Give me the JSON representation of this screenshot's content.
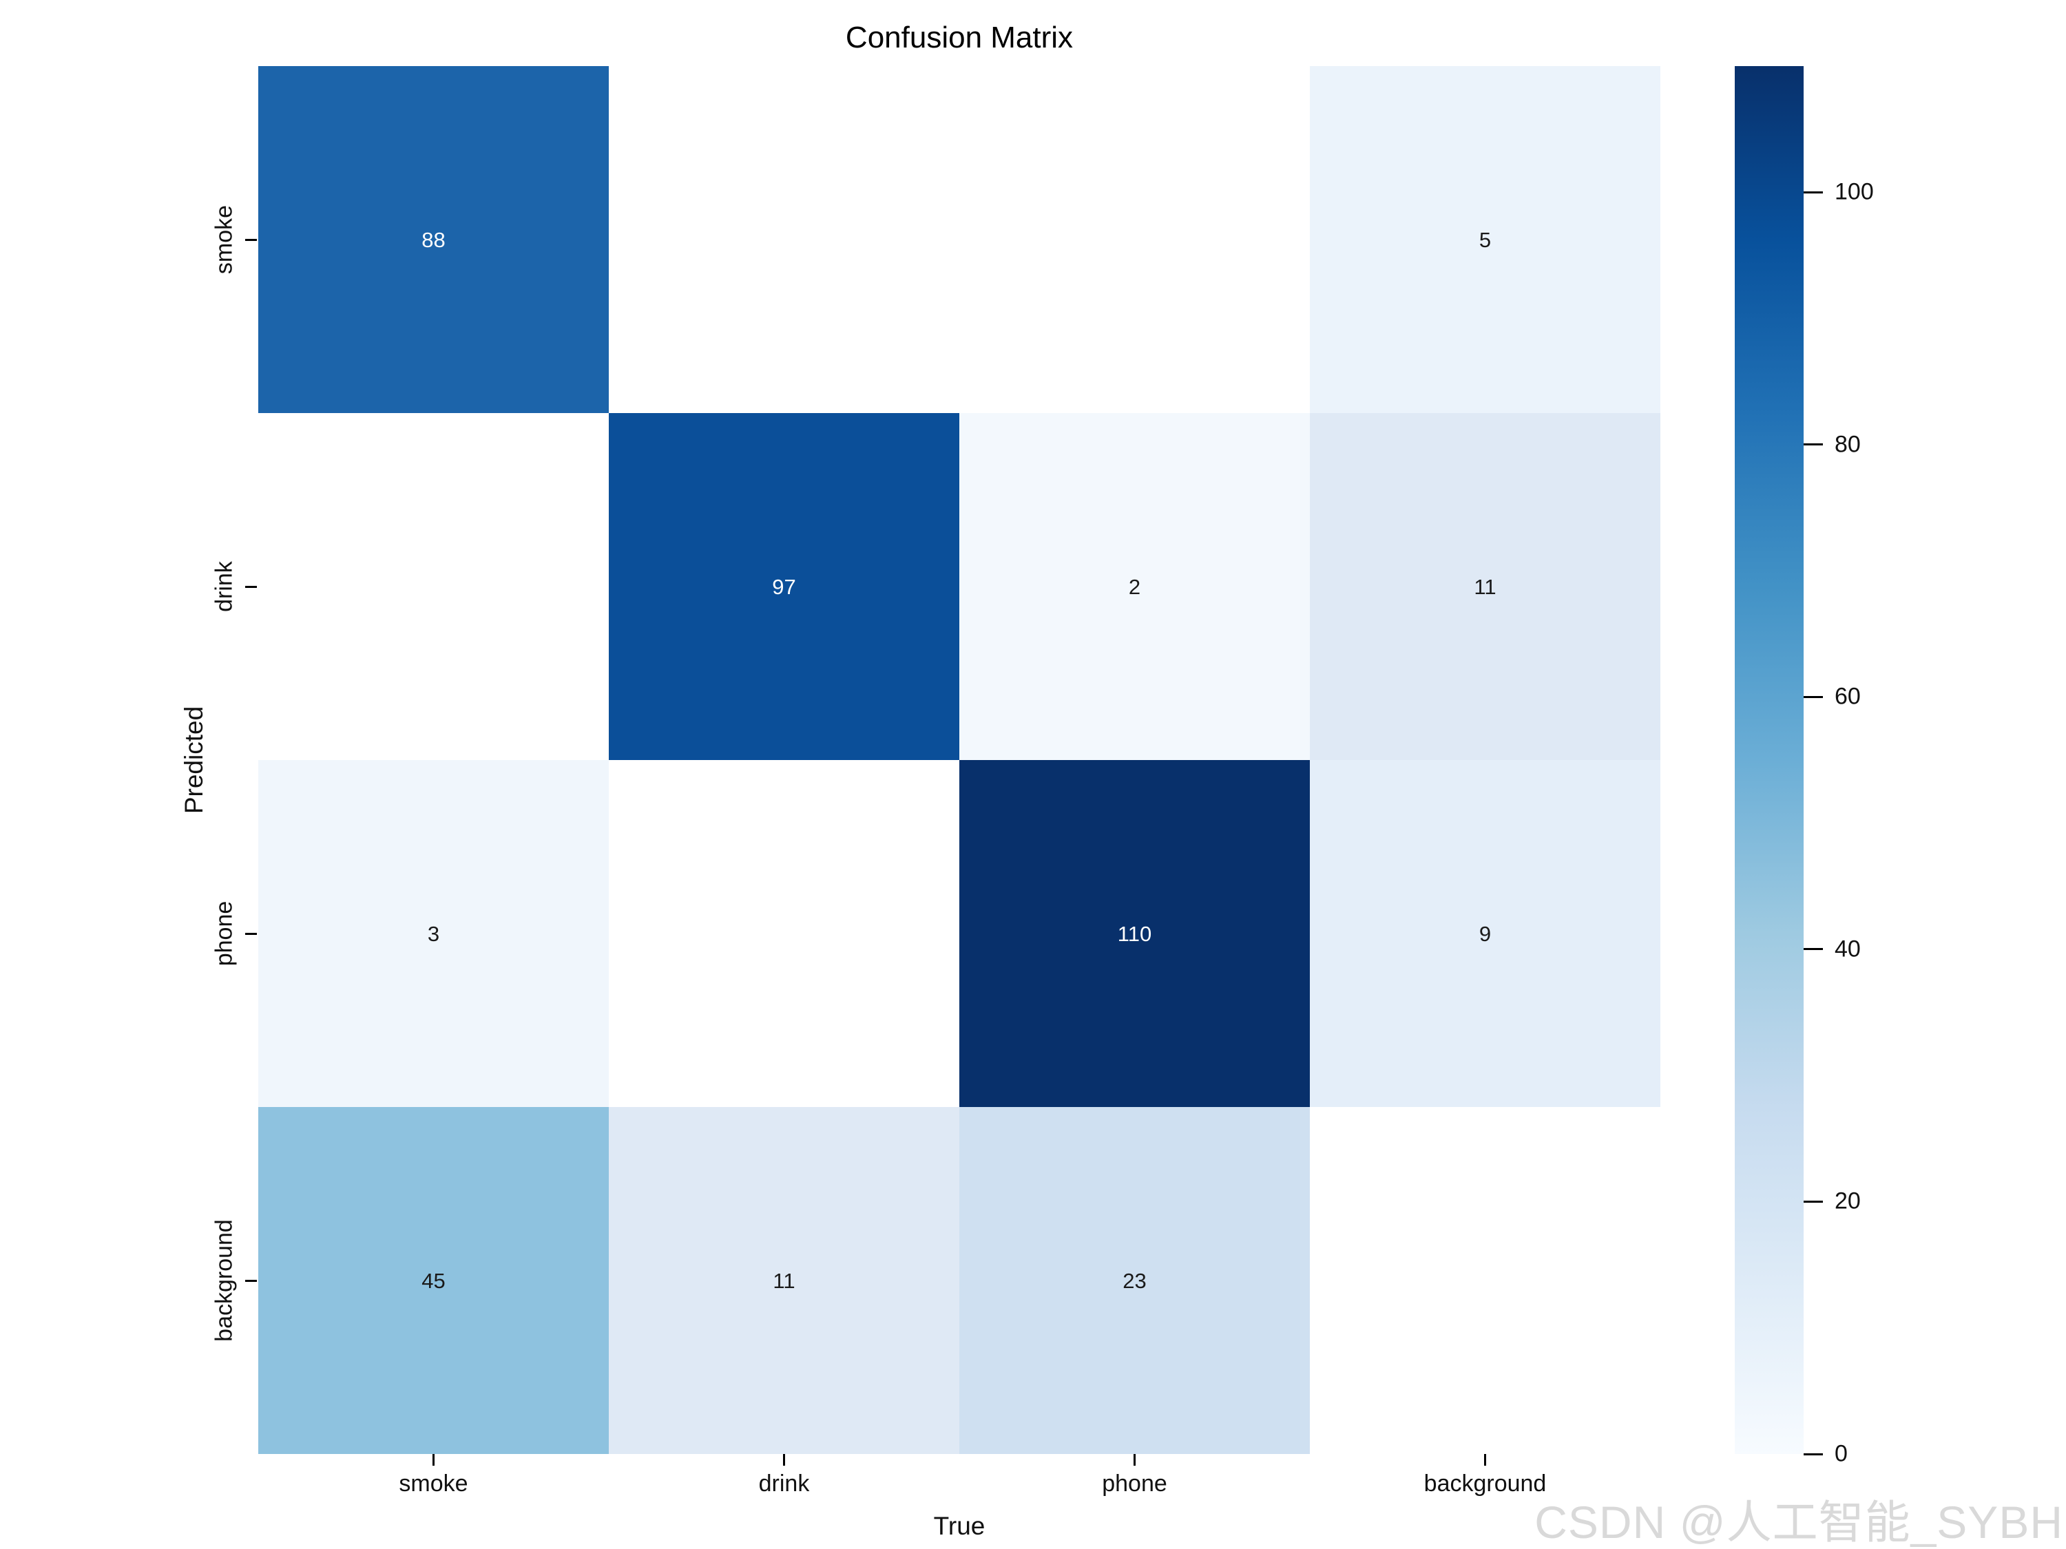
{
  "page": {
    "background": "#ffffff"
  },
  "watermark": {
    "text": "CSDN @人工智能_SYBH",
    "color": "#d9d9d9"
  },
  "chart_data": {
    "type": "heatmap",
    "title": "Confusion Matrix",
    "xlabel": "True",
    "ylabel": "Predicted",
    "x_categories": [
      "smoke",
      "drink",
      "phone",
      "background"
    ],
    "y_categories": [
      "smoke",
      "drink",
      "phone",
      "background"
    ],
    "vmin": 0,
    "vmax": 110,
    "colormap": "Blues",
    "grid": false,
    "legend": "colorbar-right",
    "matrix": [
      [
        88,
        null,
        null,
        5
      ],
      [
        null,
        97,
        2,
        11
      ],
      [
        3,
        null,
        110,
        9
      ],
      [
        45,
        11,
        23,
        null
      ]
    ],
    "cell_colors": [
      [
        "#1c64aa",
        "#ffffff",
        "#ffffff",
        "#ebf3fb"
      ],
      [
        "#ffffff",
        "#0b4f99",
        "#f3f8fd",
        "#dfe9f5"
      ],
      [
        "#f0f6fc",
        "#ffffff",
        "#08306b",
        "#e4eef9"
      ],
      [
        "#8ec2df",
        "#dfe9f5",
        "#cfe0f1",
        "#ffffff"
      ]
    ],
    "annot_text_light": "#ffffff",
    "annot_text_dark": "#1a1a1a",
    "annot_white_threshold": 60,
    "colorbar": {
      "ticks": [
        0,
        20,
        40,
        60,
        80,
        100
      ],
      "gradient": [
        {
          "value": 110,
          "color": "#08306b"
        },
        {
          "value": 96.25,
          "color": "#08519c"
        },
        {
          "value": 82.5,
          "color": "#2171b5"
        },
        {
          "value": 68.75,
          "color": "#4292c6"
        },
        {
          "value": 55,
          "color": "#6baed6"
        },
        {
          "value": 41.25,
          "color": "#9ecae1"
        },
        {
          "value": 27.5,
          "color": "#c6dbef"
        },
        {
          "value": 13.75,
          "color": "#deebf7"
        },
        {
          "value": 0,
          "color": "#f7fbff"
        }
      ]
    }
  }
}
